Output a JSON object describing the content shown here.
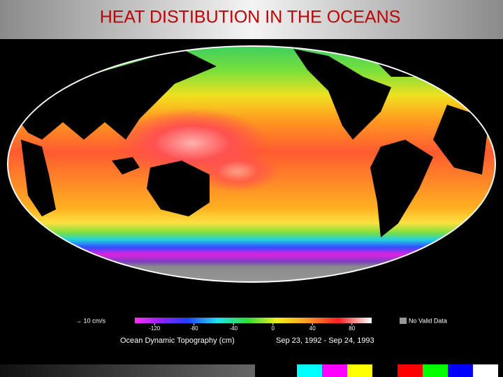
{
  "header": {
    "title": "HEAT DISTIBUTION IN THE OCEANS"
  },
  "map": {
    "vector_scale_label": "→ 10 cm/s",
    "colorbar": {
      "range": [
        -140,
        100
      ],
      "ticks": [
        -120,
        -80,
        -40,
        0,
        40,
        80
      ]
    },
    "no_data_label": "No Valid Data",
    "caption": "Ocean Dynamic Topography  (cm)",
    "date_range": "Sep 23, 1992 - Sep 24, 1993"
  }
}
